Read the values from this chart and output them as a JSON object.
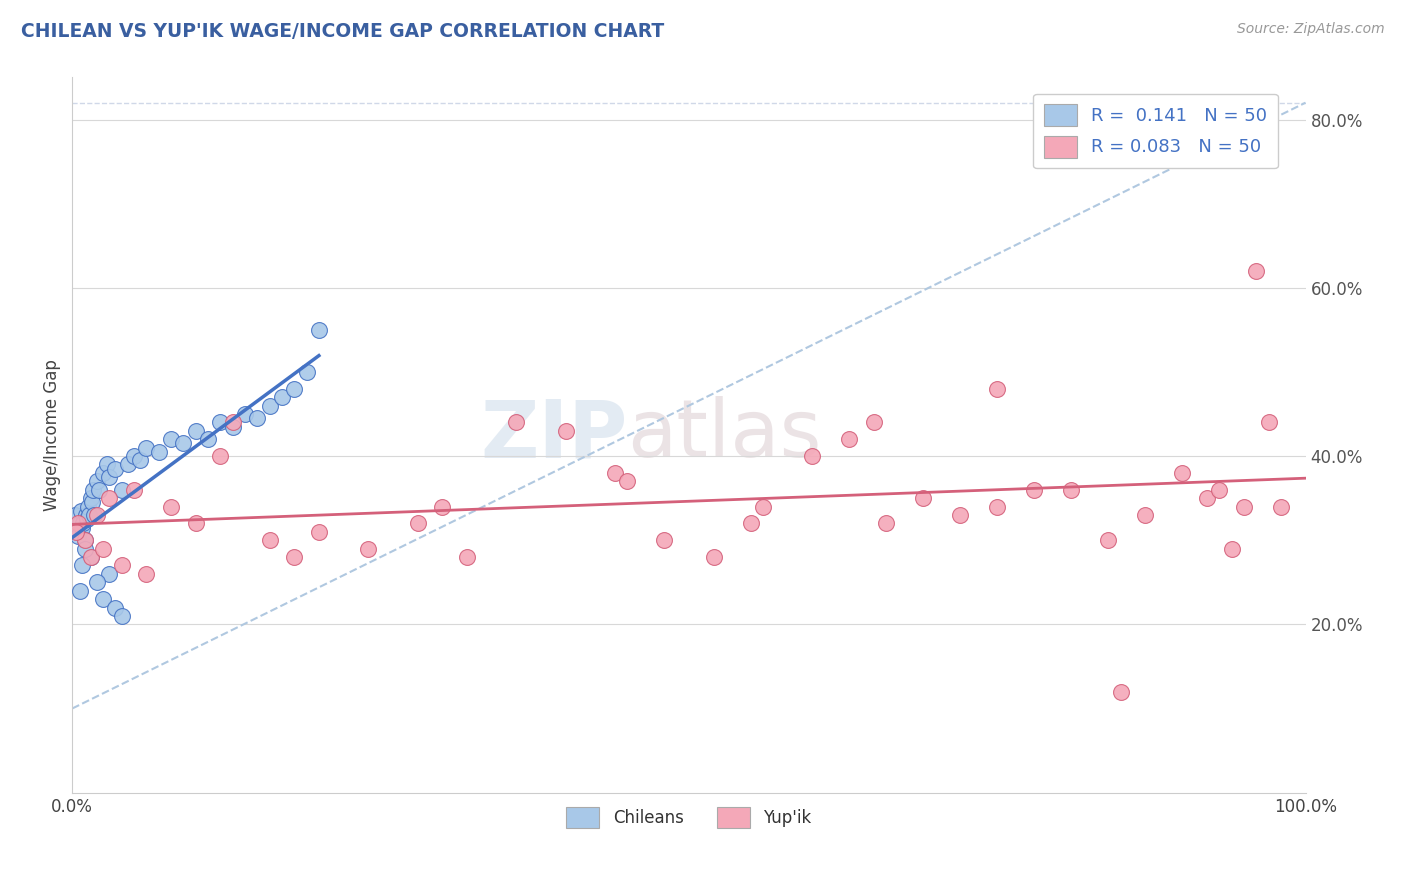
{
  "title": "CHILEAN VS YUP'IK WAGE/INCOME GAP CORRELATION CHART",
  "source": "Source: ZipAtlas.com",
  "ylabel": "Wage/Income Gap",
  "r_chilean": 0.141,
  "n_chilean": 50,
  "r_yupik": 0.083,
  "n_yupik": 50,
  "chilean_color": "#a8c8e8",
  "yupik_color": "#f4a8b8",
  "chilean_line_color": "#4472c4",
  "yupik_line_color": "#d4607a",
  "background_color": "#ffffff",
  "chilean_x": [
    0.2,
    0.4,
    0.5,
    0.6,
    0.7,
    0.8,
    0.9,
    1.0,
    1.1,
    1.2,
    1.3,
    1.4,
    1.5,
    1.6,
    1.7,
    1.8,
    2.0,
    2.2,
    2.5,
    2.8,
    3.0,
    3.5,
    4.0,
    4.5,
    5.0,
    5.5,
    6.0,
    7.0,
    8.0,
    9.0,
    10.0,
    11.0,
    12.0,
    13.0,
    14.0,
    15.0,
    16.0,
    17.0,
    18.0,
    19.0,
    20.0,
    3.0,
    2.0,
    1.5,
    1.0,
    0.8,
    0.6,
    2.5,
    3.5,
    4.0
  ],
  "chilean_y": [
    33.0,
    31.0,
    30.5,
    32.0,
    33.5,
    31.5,
    32.0,
    30.0,
    33.0,
    32.5,
    34.0,
    33.0,
    35.0,
    34.5,
    36.0,
    33.0,
    37.0,
    36.0,
    38.0,
    39.0,
    37.5,
    38.5,
    36.0,
    39.0,
    40.0,
    39.5,
    41.0,
    40.5,
    42.0,
    41.5,
    43.0,
    42.0,
    44.0,
    43.5,
    45.0,
    44.5,
    46.0,
    47.0,
    48.0,
    50.0,
    55.0,
    26.0,
    25.0,
    28.0,
    29.0,
    27.0,
    24.0,
    23.0,
    22.0,
    21.0
  ],
  "yupik_x": [
    0.5,
    1.0,
    1.5,
    2.0,
    3.0,
    4.0,
    6.0,
    8.0,
    10.0,
    13.0,
    16.0,
    20.0,
    24.0,
    28.0,
    32.0,
    36.0,
    40.0,
    44.0,
    48.0,
    52.0,
    56.0,
    60.0,
    63.0,
    66.0,
    69.0,
    72.0,
    75.0,
    78.0,
    81.0,
    84.0,
    87.0,
    90.0,
    92.0,
    94.0,
    95.0,
    96.0,
    97.0,
    98.0,
    0.3,
    2.5,
    5.0,
    12.0,
    18.0,
    30.0,
    45.0,
    55.0,
    65.0,
    75.0,
    85.0,
    93.0
  ],
  "yupik_y": [
    32.0,
    30.0,
    28.0,
    33.0,
    35.0,
    27.0,
    26.0,
    34.0,
    32.0,
    44.0,
    30.0,
    31.0,
    29.0,
    32.0,
    28.0,
    44.0,
    43.0,
    38.0,
    30.0,
    28.0,
    34.0,
    40.0,
    42.0,
    32.0,
    35.0,
    33.0,
    34.0,
    36.0,
    36.0,
    30.0,
    33.0,
    38.0,
    35.0,
    29.0,
    34.0,
    62.0,
    44.0,
    34.0,
    31.0,
    29.0,
    36.0,
    40.0,
    28.0,
    34.0,
    37.0,
    32.0,
    44.0,
    48.0,
    12.0,
    36.0
  ],
  "xlim": [
    0.0,
    100.0
  ],
  "ylim": [
    0.0,
    85.0
  ],
  "yticks": [
    20.0,
    40.0,
    60.0,
    80.0
  ],
  "dashed_line": [
    [
      0,
      100
    ],
    [
      10,
      82
    ]
  ],
  "chilean_trend_x": [
    0,
    20
  ],
  "yupik_trend_x": [
    0,
    100
  ]
}
